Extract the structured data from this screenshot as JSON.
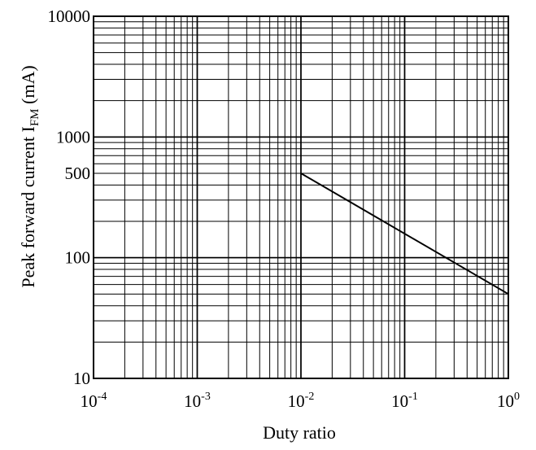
{
  "chart_data": {
    "type": "line",
    "xlabel": "Duty ratio",
    "ylabel": {
      "prefix": "Peak forward current I",
      "subscript": "FM",
      "suffix": " (mA)"
    },
    "x_scale": "log",
    "y_scale": "log",
    "xlim": [
      0.0001,
      1
    ],
    "ylim": [
      10,
      10000
    ],
    "grid": true,
    "x_ticks": [
      {
        "value": 0.0001,
        "base": "10",
        "exp": "-4"
      },
      {
        "value": 0.001,
        "base": "10",
        "exp": "-3"
      },
      {
        "value": 0.01,
        "base": "10",
        "exp": "-2"
      },
      {
        "value": 0.1,
        "base": "10",
        "exp": "-1"
      },
      {
        "value": 1,
        "base": "10",
        "exp": "0"
      }
    ],
    "y_ticks": [
      {
        "value": 10,
        "label": "10"
      },
      {
        "value": 100,
        "label": "100"
      },
      {
        "value": 500,
        "label": "500"
      },
      {
        "value": 1000,
        "label": "1000"
      },
      {
        "value": 10000,
        "label": "10000"
      }
    ],
    "series": [
      {
        "points": [
          {
            "x": 0.01,
            "y": 500
          },
          {
            "x": 1,
            "y": 50
          }
        ],
        "color": "#000000"
      }
    ]
  }
}
